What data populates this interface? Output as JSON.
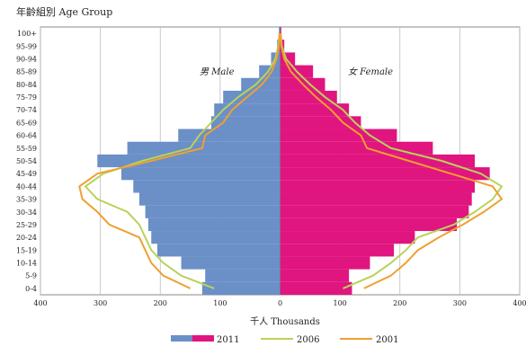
{
  "chart_data": {
    "type": "bar",
    "title": "年齡組別 Age Group",
    "xlabel": "千人 Thousands",
    "ylabel": "",
    "xlim": [
      -400,
      400
    ],
    "x_ticks": [
      -400,
      -300,
      -200,
      -100,
      0,
      100,
      200,
      300,
      400
    ],
    "x_tick_labels": [
      "400",
      "300",
      "200",
      "100",
      "0",
      "100",
      "200",
      "300",
      "400"
    ],
    "grid": true,
    "legend_position": "bottom",
    "side_labels": {
      "male": "男 Male",
      "female": "女 Female"
    },
    "colors": {
      "male_2011": "#6b8fc7",
      "female_2011": "#e0157f",
      "y2006": "#b8d35a",
      "y2001": "#f0a030"
    },
    "categories": [
      "0-4",
      "5-9",
      "10-14",
      "15-19",
      "20-24",
      "25-29",
      "30-34",
      "35-39",
      "40-44",
      "45-49",
      "50-54",
      "55-59",
      "60-64",
      "65-69",
      "70-74",
      "75-79",
      "80-84",
      "85-89",
      "90-94",
      "95-99",
      "100+"
    ],
    "series": [
      {
        "name": "2011",
        "male": [
          130,
          125,
          165,
          205,
          215,
          220,
          225,
          235,
          245,
          265,
          305,
          255,
          170,
          115,
          110,
          95,
          65,
          35,
          15,
          5,
          2
        ],
        "female": [
          120,
          115,
          150,
          190,
          225,
          295,
          315,
          320,
          325,
          350,
          325,
          255,
          195,
          135,
          115,
          95,
          75,
          55,
          25,
          7,
          2
        ]
      },
      {
        "name": "2006",
        "male": [
          110,
          165,
          195,
          215,
          225,
          235,
          255,
          305,
          325,
          295,
          230,
          150,
          135,
          115,
          95,
          70,
          40,
          20,
          8,
          3,
          1
        ],
        "female": [
          105,
          155,
          185,
          210,
          230,
          290,
          325,
          355,
          370,
          335,
          270,
          185,
          150,
          125,
          105,
          75,
          50,
          28,
          10,
          3,
          1
        ]
      },
      {
        "name": "2001",
        "male": [
          150,
          195,
          215,
          225,
          235,
          285,
          305,
          330,
          335,
          305,
          215,
          130,
          125,
          95,
          80,
          55,
          30,
          14,
          6,
          2,
          1
        ],
        "female": [
          140,
          185,
          210,
          230,
          265,
          305,
          340,
          370,
          355,
          285,
          215,
          145,
          135,
          105,
          85,
          60,
          38,
          18,
          7,
          2,
          1
        ]
      }
    ]
  }
}
